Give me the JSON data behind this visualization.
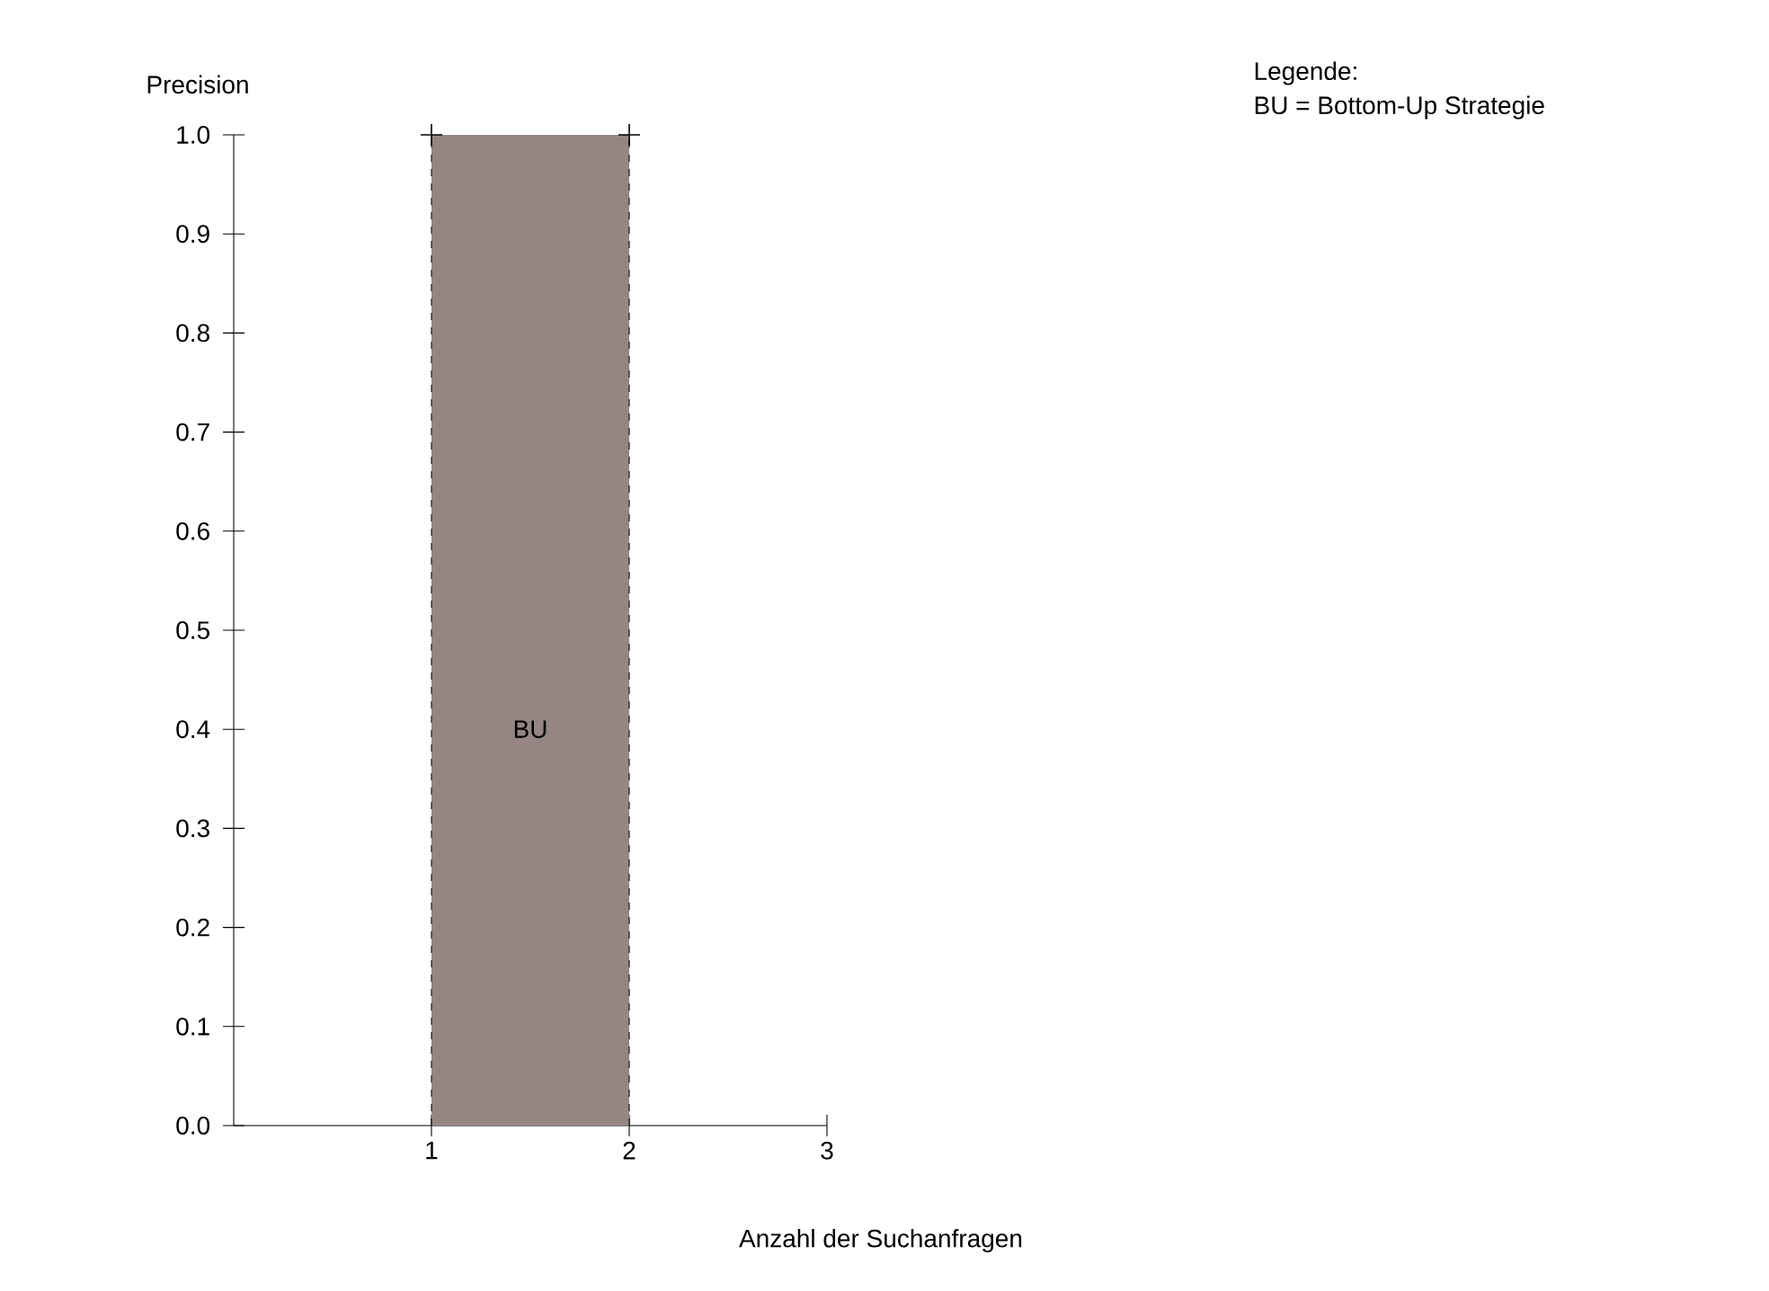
{
  "chart_data": {
    "type": "area",
    "xlabel": "Anzahl der Suchanfragen",
    "ylabel": "Precision",
    "annotations": [
      "Legende:",
      "BU = Bottom-Up Strategie"
    ],
    "series": [
      {
        "name": "BU",
        "color": "#968683",
        "x": [
          1,
          2
        ],
        "values": [
          1,
          1
        ]
      }
    ],
    "marker": "cross",
    "ref_lines": [
      {
        "axis": "x",
        "value": 1,
        "line_style": "dashed"
      },
      {
        "axis": "x",
        "value": 2,
        "line_style": "dashed"
      }
    ],
    "xlim": [
      0,
      3
    ],
    "xticks": [
      1,
      2,
      3
    ],
    "ylim": [
      0,
      1
    ],
    "yticks": [
      {
        "value": 0,
        "label": "0.0"
      },
      0.1,
      0.2,
      0.3,
      0.4,
      0.5,
      0.6,
      0.7,
      0.8,
      0.9,
      {
        "value": 1,
        "label": "1.0"
      }
    ]
  }
}
